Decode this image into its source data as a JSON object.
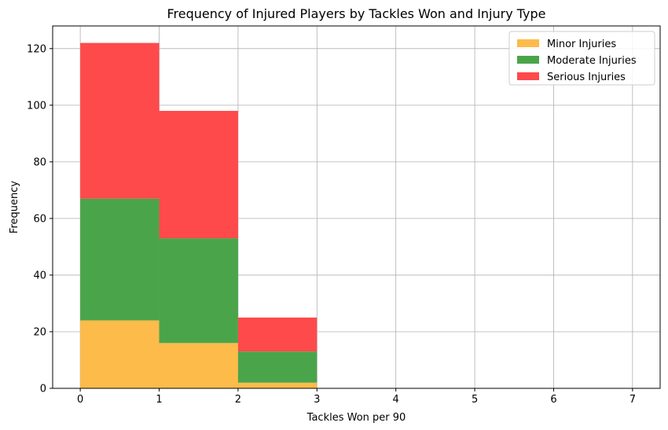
{
  "chart_data": {
    "type": "bar",
    "stacked": true,
    "histogram": true,
    "title": "Frequency of Injured Players by Tackles Won and Injury Type",
    "xlabel": "Tackles Won per 90",
    "ylabel": "Frequency",
    "bin_edges": [
      0,
      1,
      2,
      3
    ],
    "xlim": [
      -0.35,
      7.35
    ],
    "ylim": [
      0,
      128
    ],
    "x_ticks": [
      0,
      1,
      2,
      3,
      4,
      5,
      6,
      7
    ],
    "y_ticks": [
      0,
      20,
      40,
      60,
      80,
      100,
      120
    ],
    "grid": true,
    "legend_position": "top-right",
    "series": [
      {
        "name": "Minor Injuries",
        "color": "#fdbb4a",
        "values": [
          24,
          16,
          2
        ]
      },
      {
        "name": "Moderate Injuries",
        "color": "#4aa54a",
        "values": [
          43,
          37,
          11
        ]
      },
      {
        "name": "Serious Injuries",
        "color": "#fe4a4a",
        "values": [
          55,
          45,
          12
        ]
      }
    ]
  }
}
